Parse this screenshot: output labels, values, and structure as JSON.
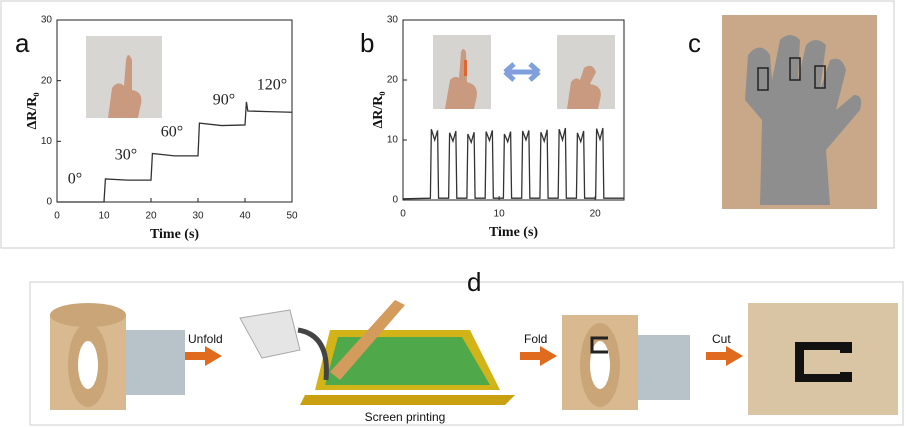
{
  "chart_data": [
    {
      "type": "line",
      "xlabel": "Time (s)",
      "ylabel": "ΔR/R₀",
      "x": [
        0,
        10,
        10.3,
        15,
        20,
        20.3,
        25,
        30,
        30.3,
        35,
        40,
        40.3,
        40.6,
        45,
        50
      ],
      "series": [
        {
          "color": "#333333",
          "values": [
            0,
            0,
            3.8,
            3.6,
            3.6,
            8,
            7.6,
            7.6,
            13,
            12.6,
            12.7,
            16.5,
            15,
            14.9,
            14.8
          ]
        }
      ],
      "annotations": [
        {
          "text": "0°",
          "color": "#f5b400"
        },
        {
          "text": "30°",
          "color": "#8dc63f"
        },
        {
          "text": "60°",
          "color": "#00a651"
        },
        {
          "text": "90°",
          "color": "#1e9bd7"
        },
        {
          "text": "120°",
          "color": "#1e88c8"
        }
      ],
      "xlim": [
        0,
        50
      ],
      "xticks": [
        0,
        10,
        20,
        30,
        40,
        50
      ],
      "ylim": [
        0,
        30
      ],
      "yticks": [
        0,
        10,
        20,
        30
      ]
    },
    {
      "type": "line",
      "xlabel": "Time (s)",
      "ylabel": "ΔR/R₀",
      "x": [
        0,
        2.85,
        2.95,
        3.3,
        3.6,
        3.7,
        4.75,
        4.85,
        5.2,
        5.5,
        5.6,
        6.65,
        6.75,
        7.1,
        7.4,
        7.5,
        8.55,
        8.65,
        9.0,
        9.3,
        9.4,
        10.45,
        10.55,
        10.9,
        11.2,
        11.3,
        12.35,
        12.45,
        12.8,
        13.1,
        13.2,
        14.25,
        14.35,
        14.7,
        15.0,
        15.1,
        16.15,
        16.25,
        16.6,
        16.9,
        17.0,
        18.05,
        18.15,
        18.5,
        18.8,
        18.9,
        20.05,
        20.15,
        20.5,
        20.8,
        20.9,
        23
      ],
      "series": [
        {
          "color": "#333333",
          "values": [
            0.2,
            0.3,
            11.8,
            10,
            11.6,
            0.3,
            0.3,
            11.2,
            9.8,
            11.5,
            0.3,
            0.3,
            11.0,
            9.6,
            11.3,
            0.3,
            0.3,
            11.4,
            9.9,
            11.6,
            0.3,
            0.3,
            11.0,
            9.7,
            11.4,
            0.3,
            0.3,
            11.5,
            10,
            11.6,
            0.3,
            0.3,
            11.3,
            9.8,
            11.7,
            0.3,
            0.3,
            11.8,
            10,
            12,
            0.3,
            0.3,
            11.2,
            9.7,
            11.5,
            0.3,
            0.3,
            11.9,
            10.1,
            12,
            0.3,
            0.3
          ]
        }
      ],
      "xlim": [
        0,
        23
      ],
      "xticks": [
        0,
        10,
        20
      ],
      "ylim": [
        0,
        30
      ],
      "yticks": [
        0,
        10,
        20,
        30
      ]
    }
  ],
  "panel_labels": [
    "a",
    "b",
    "c",
    "d"
  ],
  "process": {
    "steps": [
      "Unfold",
      "Fold",
      "Cut"
    ],
    "caption": "Screen printing"
  }
}
